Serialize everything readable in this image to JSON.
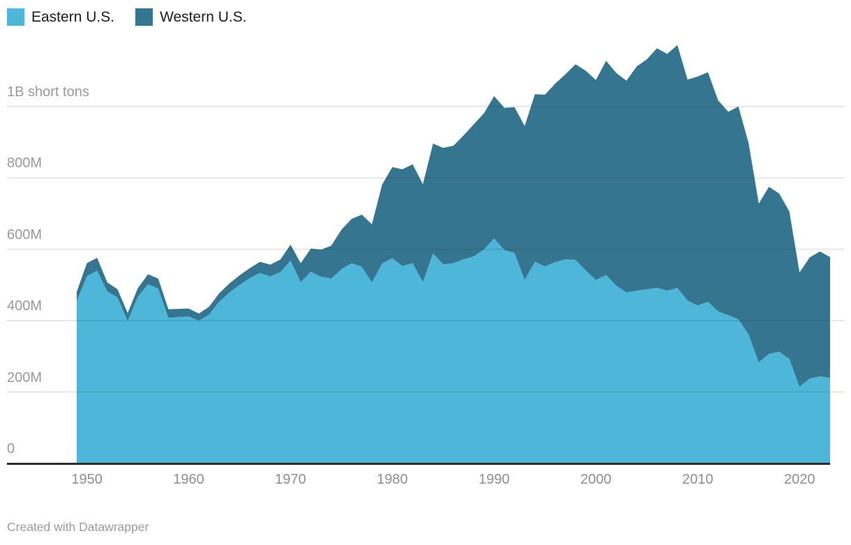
{
  "legend": {
    "items": [
      {
        "label": "Eastern U.S.",
        "color": "#4db6d9"
      },
      {
        "label": "Western U.S.",
        "color": "#35758f"
      }
    ]
  },
  "footer": {
    "credit": "Created with Datawrapper"
  },
  "chart_data": {
    "type": "area",
    "stacked": true,
    "title": "",
    "unit": "short tons",
    "values_in": "million short tons",
    "grid": true,
    "legend_position": "top-left",
    "ylim": [
      0,
      1200
    ],
    "x": [
      1949,
      1950,
      1951,
      1952,
      1953,
      1954,
      1955,
      1956,
      1957,
      1958,
      1959,
      1960,
      1961,
      1962,
      1963,
      1964,
      1965,
      1966,
      1967,
      1968,
      1969,
      1970,
      1971,
      1972,
      1973,
      1974,
      1975,
      1976,
      1977,
      1978,
      1979,
      1980,
      1981,
      1982,
      1983,
      1984,
      1985,
      1986,
      1987,
      1988,
      1989,
      1990,
      1991,
      1992,
      1993,
      1994,
      1995,
      1996,
      1997,
      1998,
      1999,
      2000,
      2001,
      2002,
      2003,
      2004,
      2005,
      2006,
      2007,
      2008,
      2009,
      2010,
      2011,
      2012,
      2013,
      2014,
      2015,
      2016,
      2017,
      2018,
      2019,
      2020,
      2021,
      2022,
      2023
    ],
    "series": [
      {
        "name": "Eastern U.S.",
        "color": "#4db6d9",
        "values": [
          455,
          525,
          540,
          482,
          465,
          399,
          467,
          502,
          490,
          408,
          410,
          412,
          400,
          417,
          453,
          479,
          500,
          519,
          534,
          524,
          536,
          568,
          508,
          537,
          523,
          518,
          544,
          561,
          551,
          507,
          560,
          575,
          553,
          561,
          508,
          588,
          558,
          561,
          572,
          580,
          600,
          630,
          598,
          590,
          514,
          565,
          552,
          564,
          572,
          570,
          541,
          514,
          528,
          498,
          479,
          484,
          488,
          492,
          484,
          492,
          456,
          443,
          453,
          426,
          415,
          404,
          361,
          283,
          307,
          313,
          293,
          215,
          238,
          244,
          240
        ]
      },
      {
        "name": "Western U.S.",
        "color": "#35758f",
        "values": [
          26,
          36,
          36,
          25,
          23,
          22,
          24,
          28,
          28,
          24,
          23,
          22,
          20,
          22,
          24,
          25,
          27,
          28,
          31,
          33,
          35,
          45,
          53,
          65,
          76,
          92,
          111,
          124,
          146,
          163,
          221,
          255,
          271,
          277,
          274,
          308,
          326,
          329,
          347,
          370,
          381,
          399,
          398,
          408,
          431,
          469,
          481,
          500,
          518,
          548,
          559,
          560,
          600,
          596,
          593,
          628,
          644,
          671,
          663,
          680,
          619,
          641,
          643,
          591,
          570,
          596,
          536,
          445,
          468,
          443,
          413,
          320,
          339,
          350,
          338
        ]
      }
    ],
    "y_ticks": [
      {
        "value": 0,
        "label": "0"
      },
      {
        "value": 200,
        "label": "200M"
      },
      {
        "value": 400,
        "label": "400M"
      },
      {
        "value": 600,
        "label": "600M"
      },
      {
        "value": 800,
        "label": "800M"
      },
      {
        "value": 1000,
        "label": "1B short tons"
      }
    ],
    "x_ticks": [
      1950,
      1960,
      1970,
      1980,
      1990,
      2000,
      2010,
      2020
    ]
  },
  "colors": {
    "gridline": "rgba(51,51,51,0.12)",
    "baseline": "#2d2d2d",
    "axis_text": "#999999",
    "legend_text": "#1d1d1d"
  }
}
